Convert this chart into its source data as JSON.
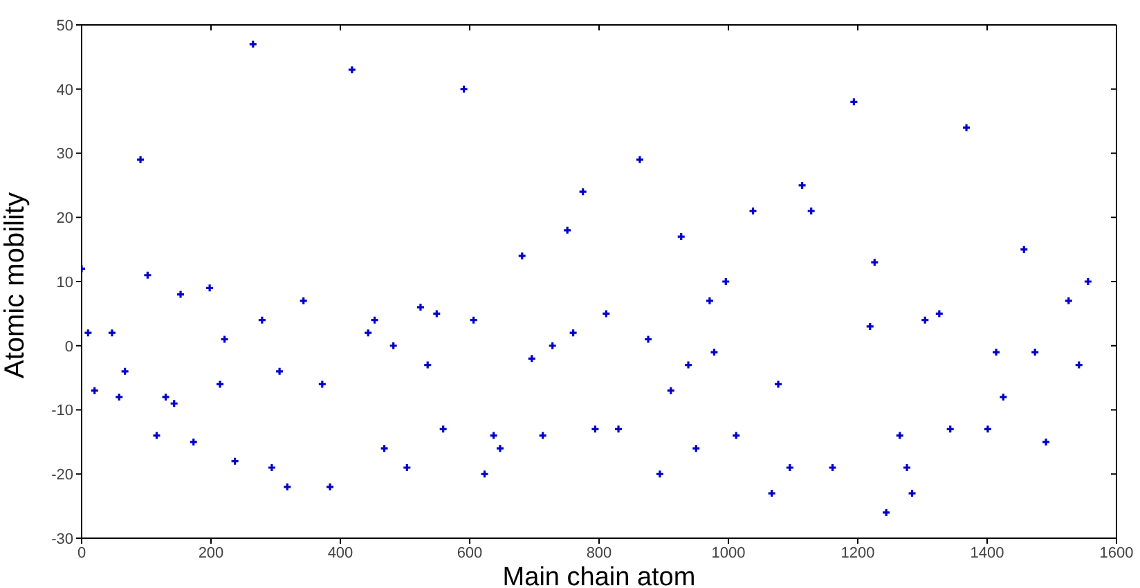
{
  "chart_data": {
    "type": "scatter",
    "xlabel": "Main chain atom",
    "ylabel": "Atomic mobility",
    "xlim": [
      0,
      1600
    ],
    "xticks": [
      0,
      200,
      400,
      600,
      800,
      1000,
      1200,
      1400,
      1600
    ],
    "ylim": [
      -30,
      50
    ],
    "yticks": [
      -30,
      -20,
      -10,
      0,
      10,
      20,
      30,
      40,
      50
    ],
    "marker": "cross",
    "x": [
      0,
      10,
      20,
      47,
      58,
      67,
      91,
      102,
      116,
      130,
      143,
      153,
      173,
      198,
      214,
      221,
      237,
      265,
      279,
      294,
      306,
      318,
      343,
      372,
      384,
      418,
      443,
      453,
      468,
      482,
      503,
      524,
      535,
      549,
      559,
      591,
      606,
      623,
      637,
      647,
      681,
      696,
      713,
      728,
      751,
      760,
      775,
      794,
      811,
      830,
      863,
      876,
      894,
      911,
      927,
      938,
      950,
      971,
      978,
      996,
      1012,
      1038,
      1067,
      1077,
      1095,
      1114,
      1128,
      1161,
      1194,
      1219,
      1226,
      1244,
      1265,
      1276,
      1284,
      1304,
      1326,
      1343,
      1368,
      1401,
      1414,
      1425,
      1457,
      1474,
      1491,
      1526,
      1542,
      1556
    ],
    "series": [
      {
        "color": "#0000cc",
        "values": [
          12,
          2,
          -7,
          2,
          -8,
          -4,
          29,
          11,
          -14,
          -8,
          -9,
          8,
          -15,
          9,
          -6,
          1,
          -18,
          47,
          4,
          -19,
          -4,
          -22,
          7,
          -6,
          -22,
          43,
          2,
          4,
          -16,
          0,
          -19,
          6,
          -3,
          5,
          -13,
          40,
          4,
          -20,
          -14,
          -16,
          14,
          -2,
          -14,
          0,
          18,
          2,
          24,
          -13,
          5,
          -13,
          29,
          1,
          -20,
          -7,
          17,
          -3,
          -16,
          7,
          -1,
          10,
          -14,
          21,
          -23,
          -6,
          -19,
          25,
          21,
          -19,
          38,
          3,
          13,
          -26,
          -14,
          -19,
          -23,
          4,
          5,
          -13,
          34,
          -13,
          -1,
          -8,
          15,
          -1,
          -15,
          7,
          -3,
          10
        ]
      }
    ]
  }
}
